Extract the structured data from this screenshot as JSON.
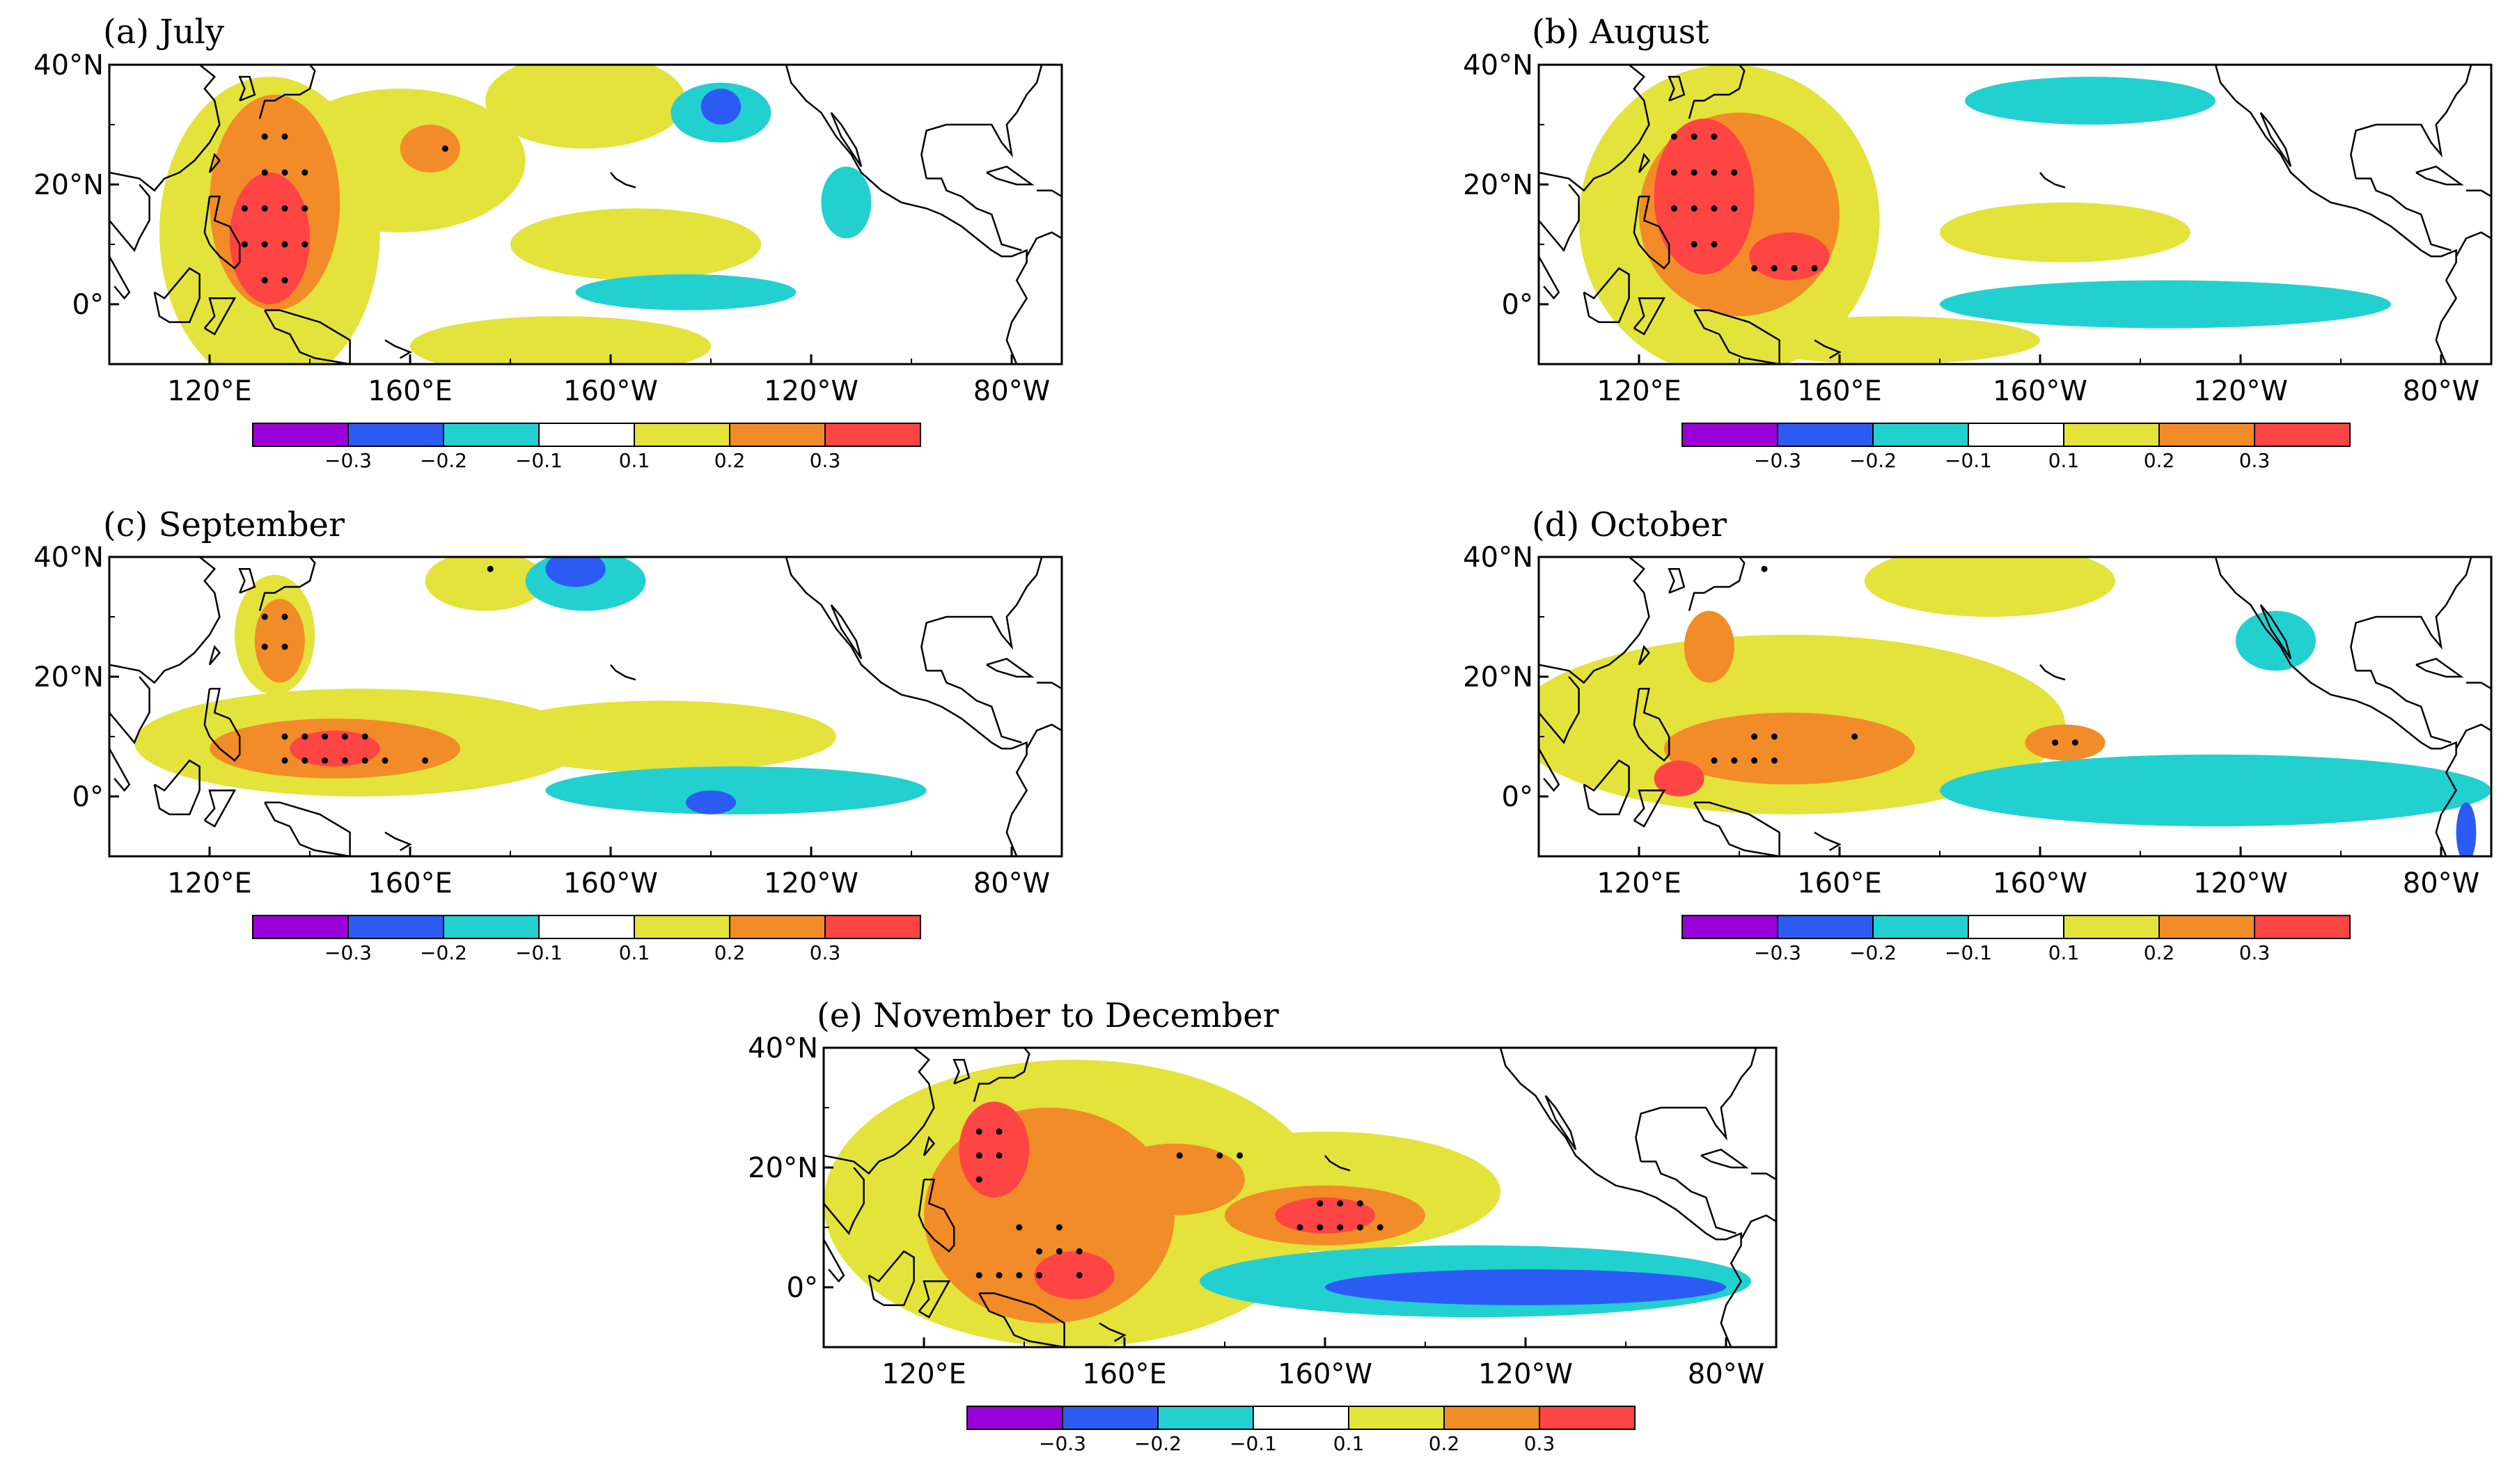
{
  "figure": {
    "panel_count": 5
  },
  "chart_data": [
    {
      "type": "heatmap",
      "panel_label": "(a) July",
      "x_ticks": [
        "120°E",
        "160°E",
        "160°W",
        "120°W",
        "80°W"
      ],
      "y_ticks": [
        "40°N",
        "20°N",
        "0°"
      ],
      "x_range_deg_east": [
        100,
        290
      ],
      "y_range_deg": [
        -10,
        40
      ],
      "colorbar": {
        "levels": [
          "−0.3",
          "−0.2",
          "−0.1",
          "0.1",
          "0.2",
          "0.3"
        ],
        "colors": [
          "#9a00d8",
          "#2c5bf3",
          "#23d0d0",
          "#ffffff",
          "#e3e33c",
          "#f28c28",
          "#ff4444"
        ]
      },
      "features": [
        {
          "level": 0.1,
          "lon": 132,
          "lat": 12,
          "w": 22,
          "h": 26
        },
        {
          "level": 0.1,
          "lon": 158,
          "lat": 24,
          "w": 25,
          "h": 12
        },
        {
          "level": 0.1,
          "lon": 195,
          "lat": 34,
          "w": 20,
          "h": 8
        },
        {
          "level": 0.1,
          "lon": 205,
          "lat": 10,
          "w": 25,
          "h": 6
        },
        {
          "level": 0.1,
          "lon": 190,
          "lat": -7,
          "w": 30,
          "h": 5
        },
        {
          "level": 0.2,
          "lon": 133,
          "lat": 17,
          "w": 13,
          "h": 18
        },
        {
          "level": 0.2,
          "lon": 164,
          "lat": 26,
          "w": 6,
          "h": 4
        },
        {
          "level": 0.3,
          "lon": 132,
          "lat": 11,
          "w": 8,
          "h": 11
        },
        {
          "level": -0.1,
          "lon": 222,
          "lat": 32,
          "w": 10,
          "h": 5
        },
        {
          "level": -0.1,
          "lon": 215,
          "lat": 2,
          "w": 22,
          "h": 3
        },
        {
          "level": -0.1,
          "lon": 247,
          "lat": 17,
          "w": 5,
          "h": 6
        },
        {
          "level": -0.2,
          "lon": 222,
          "lat": 33,
          "w": 4,
          "h": 3
        }
      ],
      "stipples": [
        [
          131,
          28
        ],
        [
          135,
          28
        ],
        [
          131,
          22
        ],
        [
          135,
          22
        ],
        [
          139,
          22
        ],
        [
          127,
          16
        ],
        [
          131,
          16
        ],
        [
          135,
          16
        ],
        [
          139,
          16
        ],
        [
          127,
          10
        ],
        [
          131,
          10
        ],
        [
          135,
          10
        ],
        [
          139,
          10
        ],
        [
          131,
          4
        ],
        [
          135,
          4
        ],
        [
          167,
          26
        ]
      ]
    },
    {
      "type": "heatmap",
      "panel_label": "(b) August",
      "x_ticks": [
        "120°E",
        "160°E",
        "160°W",
        "120°W",
        "80°W"
      ],
      "y_ticks": [
        "40°N",
        "20°N",
        "0°"
      ],
      "x_range_deg_east": [
        100,
        290
      ],
      "y_range_deg": [
        -10,
        40
      ],
      "colorbar": {
        "levels": [
          "−0.3",
          "−0.2",
          "−0.1",
          "0.1",
          "0.2",
          "0.3"
        ],
        "colors": [
          "#9a00d8",
          "#2c5bf3",
          "#23d0d0",
          "#ffffff",
          "#e3e33c",
          "#f28c28",
          "#ff4444"
        ]
      },
      "features": [
        {
          "level": 0.1,
          "lon": 138,
          "lat": 14,
          "w": 30,
          "h": 26
        },
        {
          "level": 0.1,
          "lon": 205,
          "lat": 12,
          "w": 25,
          "h": 5
        },
        {
          "level": 0.1,
          "lon": 170,
          "lat": -6,
          "w": 30,
          "h": 4
        },
        {
          "level": 0.2,
          "lon": 140,
          "lat": 15,
          "w": 20,
          "h": 17
        },
        {
          "level": 0.3,
          "lon": 133,
          "lat": 18,
          "w": 10,
          "h": 13
        },
        {
          "level": 0.3,
          "lon": 150,
          "lat": 8,
          "w": 8,
          "h": 4
        },
        {
          "level": -0.1,
          "lon": 225,
          "lat": 0,
          "w": 45,
          "h": 4
        },
        {
          "level": -0.1,
          "lon": 210,
          "lat": 34,
          "w": 25,
          "h": 4
        }
      ],
      "stipples": [
        [
          127,
          28
        ],
        [
          131,
          28
        ],
        [
          135,
          28
        ],
        [
          127,
          22
        ],
        [
          131,
          22
        ],
        [
          135,
          22
        ],
        [
          139,
          22
        ],
        [
          127,
          16
        ],
        [
          131,
          16
        ],
        [
          135,
          16
        ],
        [
          139,
          16
        ],
        [
          131,
          10
        ],
        [
          135,
          10
        ],
        [
          143,
          6
        ],
        [
          147,
          6
        ],
        [
          151,
          6
        ],
        [
          155,
          6
        ]
      ]
    },
    {
      "type": "heatmap",
      "panel_label": "(c) September",
      "x_ticks": [
        "120°E",
        "160°E",
        "160°W",
        "120°W",
        "80°W"
      ],
      "y_ticks": [
        "40°N",
        "20°N",
        "0°"
      ],
      "x_range_deg_east": [
        100,
        290
      ],
      "y_range_deg": [
        -10,
        40
      ],
      "colorbar": {
        "levels": [
          "−0.3",
          "−0.2",
          "−0.1",
          "0.1",
          "0.2",
          "0.3"
        ],
        "colors": [
          "#9a00d8",
          "#2c5bf3",
          "#23d0d0",
          "#ffffff",
          "#e3e33c",
          "#f28c28",
          "#ff4444"
        ]
      },
      "features": [
        {
          "level": 0.1,
          "lon": 150,
          "lat": 9,
          "w": 45,
          "h": 9
        },
        {
          "level": 0.1,
          "lon": 133,
          "lat": 27,
          "w": 8,
          "h": 10
        },
        {
          "level": 0.1,
          "lon": 175,
          "lat": 36,
          "w": 12,
          "h": 5
        },
        {
          "level": 0.1,
          "lon": 210,
          "lat": 10,
          "w": 35,
          "h": 6
        },
        {
          "level": 0.2,
          "lon": 145,
          "lat": 8,
          "w": 25,
          "h": 5
        },
        {
          "level": 0.2,
          "lon": 134,
          "lat": 26,
          "w": 5,
          "h": 7
        },
        {
          "level": 0.3,
          "lon": 145,
          "lat": 8,
          "w": 9,
          "h": 3
        },
        {
          "level": -0.1,
          "lon": 225,
          "lat": 1,
          "w": 38,
          "h": 4
        },
        {
          "level": -0.1,
          "lon": 195,
          "lat": 36,
          "w": 12,
          "h": 5
        },
        {
          "level": -0.2,
          "lon": 220,
          "lat": -1,
          "w": 5,
          "h": 2
        },
        {
          "level": -0.2,
          "lon": 193,
          "lat": 38,
          "w": 6,
          "h": 3
        }
      ],
      "stipples": [
        [
          131,
          30
        ],
        [
          135,
          30
        ],
        [
          131,
          25
        ],
        [
          135,
          25
        ],
        [
          135,
          10
        ],
        [
          139,
          10
        ],
        [
          143,
          10
        ],
        [
          147,
          10
        ],
        [
          151,
          10
        ],
        [
          135,
          6
        ],
        [
          139,
          6
        ],
        [
          143,
          6
        ],
        [
          147,
          6
        ],
        [
          151,
          6
        ],
        [
          155,
          6
        ],
        [
          163,
          6
        ],
        [
          176,
          38
        ]
      ]
    },
    {
      "type": "heatmap",
      "panel_label": "(d) October",
      "x_ticks": [
        "120°E",
        "160°E",
        "160°W",
        "120°W",
        "80°W"
      ],
      "y_ticks": [
        "40°N",
        "20°N",
        "0°"
      ],
      "x_range_deg_east": [
        100,
        290
      ],
      "y_range_deg": [
        -10,
        40
      ],
      "colorbar": {
        "levels": [
          "−0.3",
          "−0.2",
          "−0.1",
          "0.1",
          "0.2",
          "0.3"
        ],
        "colors": [
          "#9a00d8",
          "#2c5bf3",
          "#23d0d0",
          "#ffffff",
          "#e3e33c",
          "#f28c28",
          "#ff4444"
        ]
      },
      "features": [
        {
          "level": 0.1,
          "lon": 150,
          "lat": 12,
          "w": 55,
          "h": 15
        },
        {
          "level": 0.1,
          "lon": 190,
          "lat": 36,
          "w": 25,
          "h": 6
        },
        {
          "level": 0.2,
          "lon": 150,
          "lat": 8,
          "w": 25,
          "h": 6
        },
        {
          "level": 0.2,
          "lon": 205,
          "lat": 9,
          "w": 8,
          "h": 3
        },
        {
          "level": 0.2,
          "lon": 134,
          "lat": 25,
          "w": 5,
          "h": 6
        },
        {
          "level": 0.3,
          "lon": 128,
          "lat": 3,
          "w": 5,
          "h": 3
        },
        {
          "level": -0.1,
          "lon": 235,
          "lat": 1,
          "w": 55,
          "h": 6
        },
        {
          "level": -0.1,
          "lon": 247,
          "lat": 26,
          "w": 8,
          "h": 5
        },
        {
          "level": -0.2,
          "lon": 285,
          "lat": -6,
          "w": 2,
          "h": 5
        }
      ],
      "stipples": [
        [
          145,
          38
        ],
        [
          143,
          10
        ],
        [
          147,
          10
        ],
        [
          135,
          6
        ],
        [
          139,
          6
        ],
        [
          143,
          6
        ],
        [
          147,
          6
        ],
        [
          163,
          10
        ],
        [
          203,
          9
        ],
        [
          207,
          9
        ]
      ]
    },
    {
      "type": "heatmap",
      "panel_label": "(e) November to December",
      "x_ticks": [
        "120°E",
        "160°E",
        "160°W",
        "120°W",
        "80°W"
      ],
      "y_ticks": [
        "40°N",
        "20°N",
        "0°"
      ],
      "x_range_deg_east": [
        100,
        290
      ],
      "y_range_deg": [
        -10,
        40
      ],
      "colorbar": {
        "levels": [
          "−0.3",
          "−0.2",
          "−0.1",
          "0.1",
          "0.2",
          "0.3"
        ],
        "colors": [
          "#9a00d8",
          "#2c5bf3",
          "#23d0d0",
          "#ffffff",
          "#e3e33c",
          "#f28c28",
          "#ff4444"
        ]
      },
      "features": [
        {
          "level": 0.1,
          "lon": 150,
          "lat": 14,
          "w": 50,
          "h": 24
        },
        {
          "level": 0.1,
          "lon": 200,
          "lat": 16,
          "w": 35,
          "h": 10
        },
        {
          "level": 0.2,
          "lon": 145,
          "lat": 12,
          "w": 25,
          "h": 18
        },
        {
          "level": 0.2,
          "lon": 170,
          "lat": 18,
          "w": 14,
          "h": 6
        },
        {
          "level": 0.2,
          "lon": 200,
          "lat": 12,
          "w": 20,
          "h": 5
        },
        {
          "level": 0.3,
          "lon": 134,
          "lat": 23,
          "w": 7,
          "h": 8
        },
        {
          "level": 0.3,
          "lon": 150,
          "lat": 2,
          "w": 8,
          "h": 4
        },
        {
          "level": 0.3,
          "lon": 200,
          "lat": 12,
          "w": 10,
          "h": 3
        },
        {
          "level": -0.1,
          "lon": 230,
          "lat": 1,
          "w": 55,
          "h": 6
        },
        {
          "level": -0.2,
          "lon": 240,
          "lat": 0,
          "w": 40,
          "h": 3
        }
      ],
      "stipples": [
        [
          131,
          26
        ],
        [
          135,
          26
        ],
        [
          131,
          22
        ],
        [
          135,
          22
        ],
        [
          131,
          18
        ],
        [
          139,
          10
        ],
        [
          147,
          10
        ],
        [
          143,
          6
        ],
        [
          147,
          6
        ],
        [
          151,
          6
        ],
        [
          131,
          2
        ],
        [
          135,
          2
        ],
        [
          139,
          2
        ],
        [
          143,
          2
        ],
        [
          151,
          2
        ],
        [
          171,
          22
        ],
        [
          179,
          22
        ],
        [
          183,
          22
        ],
        [
          199,
          14
        ],
        [
          203,
          14
        ],
        [
          207,
          14
        ],
        [
          195,
          10
        ],
        [
          199,
          10
        ],
        [
          203,
          10
        ],
        [
          207,
          10
        ],
        [
          211,
          10
        ]
      ]
    }
  ]
}
